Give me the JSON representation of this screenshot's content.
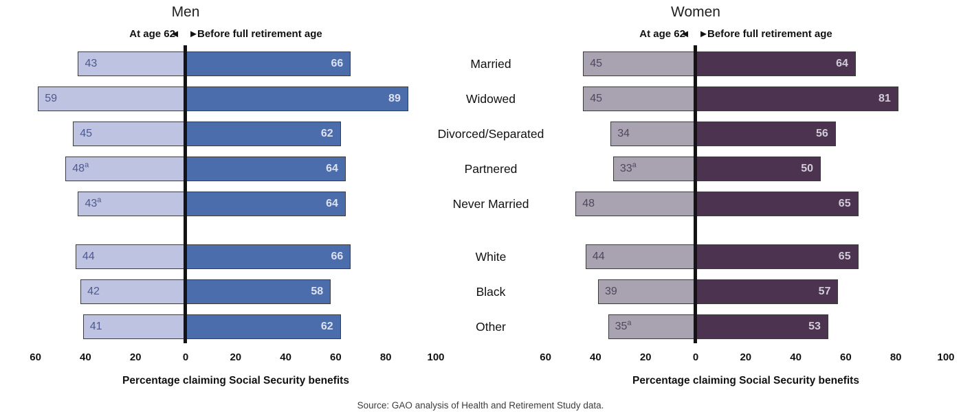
{
  "source_note": "Source: GAO analysis of Health and Retirement Study data.",
  "categories": [
    "Married",
    "Widowed",
    "Divorced/Separated",
    "Partnered",
    "Never Married",
    "White",
    "Black",
    "Other"
  ],
  "chart_data": [
    {
      "type": "bar",
      "variant": "diverging-horizontal",
      "title": "Men",
      "subtitle_left": "At age 62",
      "subtitle_right": "Before full retirement age",
      "arrows": "◄ ►",
      "xlabel": "Percentage claiming Social Security benefits",
      "xlim": [
        -60,
        100
      ],
      "axis_ticks": [
        {
          "label": "60",
          "value": -60
        },
        {
          "label": "40",
          "value": -40
        },
        {
          "label": "20",
          "value": -20
        },
        {
          "label": "0",
          "value": 0
        },
        {
          "label": "20",
          "value": 20
        },
        {
          "label": "40",
          "value": 40
        },
        {
          "label": "60",
          "value": 60
        },
        {
          "label": "80",
          "value": 80
        },
        {
          "label": "100",
          "value": 100
        }
      ],
      "categories": [
        "Married",
        "Widowed",
        "Divorced/Separated",
        "Partnered",
        "Never Married",
        "White",
        "Black",
        "Other"
      ],
      "series": [
        {
          "name": "At age 62",
          "side": "left",
          "color": "#bdc3e1",
          "label_color": "#4d598f",
          "values": [
            43,
            59,
            45,
            48,
            43,
            44,
            42,
            41
          ],
          "superscripts": [
            "",
            "",
            "",
            "a",
            "a",
            "",
            "",
            ""
          ]
        },
        {
          "name": "Before full retirement age",
          "side": "right",
          "color": "#4c6dac",
          "label_color": "#dce2f1",
          "values": [
            66,
            89,
            62,
            64,
            64,
            66,
            58,
            62
          ],
          "superscripts": [
            "",
            "",
            "",
            "",
            "",
            "",
            "",
            ""
          ]
        }
      ]
    },
    {
      "type": "bar",
      "variant": "diverging-horizontal",
      "title": "Women",
      "subtitle_left": "At age 62",
      "subtitle_right": "Before full retirement age",
      "arrows": "◄ ►",
      "xlabel": "Percentage claiming Social Security benefits",
      "xlim": [
        -60,
        100
      ],
      "axis_ticks": [
        {
          "label": "60",
          "value": -60
        },
        {
          "label": "40",
          "value": -40
        },
        {
          "label": "20",
          "value": -20
        },
        {
          "label": "0",
          "value": 0
        },
        {
          "label": "20",
          "value": 20
        },
        {
          "label": "40",
          "value": 40
        },
        {
          "label": "60",
          "value": 60
        },
        {
          "label": "80",
          "value": 80
        },
        {
          "label": "100",
          "value": 100
        }
      ],
      "categories": [
        "Married",
        "Widowed",
        "Divorced/Separated",
        "Partnered",
        "Never Married",
        "White",
        "Black",
        "Other"
      ],
      "series": [
        {
          "name": "At age 62",
          "side": "left",
          "color": "#a8a2b1",
          "label_color": "#52465e",
          "values": [
            45,
            45,
            34,
            33,
            48,
            44,
            39,
            35
          ],
          "superscripts": [
            "",
            "",
            "",
            "a",
            "",
            "",
            "",
            "a"
          ]
        },
        {
          "name": "Before full retirement age",
          "side": "right",
          "color": "#4c3450",
          "label_color": "#d2cbd9",
          "values": [
            64,
            81,
            56,
            50,
            65,
            65,
            57,
            53
          ],
          "superscripts": [
            "",
            "",
            "",
            "",
            "",
            "",
            "",
            ""
          ]
        }
      ]
    }
  ]
}
